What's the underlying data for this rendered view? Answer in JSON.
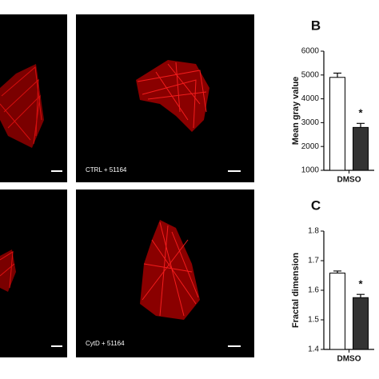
{
  "image_captions": [
    "CTRL + 51164",
    "CytD + 51164"
  ],
  "chart_data": [
    {
      "type": "bar",
      "label": "B",
      "ylabel": "Mean gray value",
      "categories": [
        "DMSO"
      ],
      "series": [
        {
          "color": "#ffffff",
          "values": [
            4900
          ],
          "errors": [
            180
          ]
        },
        {
          "color": "#333333",
          "values": [
            2800
          ],
          "errors": [
            170
          ]
        }
      ],
      "annotations": [
        "*"
      ],
      "ylim": [
        1000,
        6000
      ],
      "yticks": [
        1000,
        2000,
        3000,
        4000,
        5000,
        6000
      ]
    },
    {
      "type": "bar",
      "label": "C",
      "ylabel": "Fractal dimension",
      "categories": [
        "DMSO"
      ],
      "series": [
        {
          "color": "#ffffff",
          "values": [
            1.658
          ],
          "errors": [
            0.007
          ]
        },
        {
          "color": "#333333",
          "values": [
            1.575
          ],
          "errors": [
            0.011
          ]
        }
      ],
      "annotations": [
        "*"
      ],
      "ylim": [
        1.4,
        1.8
      ],
      "yticks": [
        1.4,
        1.5,
        1.6,
        1.7,
        1.8
      ]
    }
  ]
}
